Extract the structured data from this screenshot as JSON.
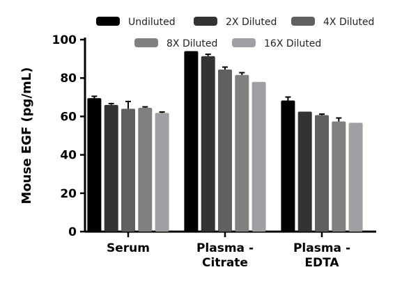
{
  "chart_data": {
    "type": "bar",
    "title": "",
    "xlabel": "",
    "ylabel": "Mouse EGF (pg/mL)",
    "ylim": [
      0,
      100
    ],
    "yticks": [
      0,
      20,
      40,
      60,
      80,
      100
    ],
    "grid": false,
    "legend_position": "top",
    "categories": [
      [
        "Serum"
      ],
      [
        "Plasma -",
        "Citrate"
      ],
      [
        "Plasma -",
        "EDTA"
      ]
    ],
    "series": [
      {
        "name": "Undiluted",
        "color": "#000000",
        "values": [
          69.5,
          94,
          68.3
        ],
        "errors": [
          1.0,
          0,
          1.8
        ]
      },
      {
        "name": "2X Diluted",
        "color": "#333333",
        "values": [
          66,
          91.4,
          62.5
        ],
        "errors": [
          0.7,
          1.0,
          0
        ]
      },
      {
        "name": "4X Diluted",
        "color": "#606060",
        "values": [
          64,
          84.4,
          60.7
        ],
        "errors": [
          3.8,
          1.3,
          0.5
        ]
      },
      {
        "name": "8X Diluted",
        "color": "#808080",
        "values": [
          64.5,
          81.6,
          57.4
        ],
        "errors": [
          0.5,
          1.2,
          1.8
        ]
      },
      {
        "name": "16X Diluted",
        "color": "#a0a0a4",
        "values": [
          61.8,
          78,
          56.7
        ],
        "errors": [
          0.5,
          0,
          0
        ]
      }
    ]
  }
}
